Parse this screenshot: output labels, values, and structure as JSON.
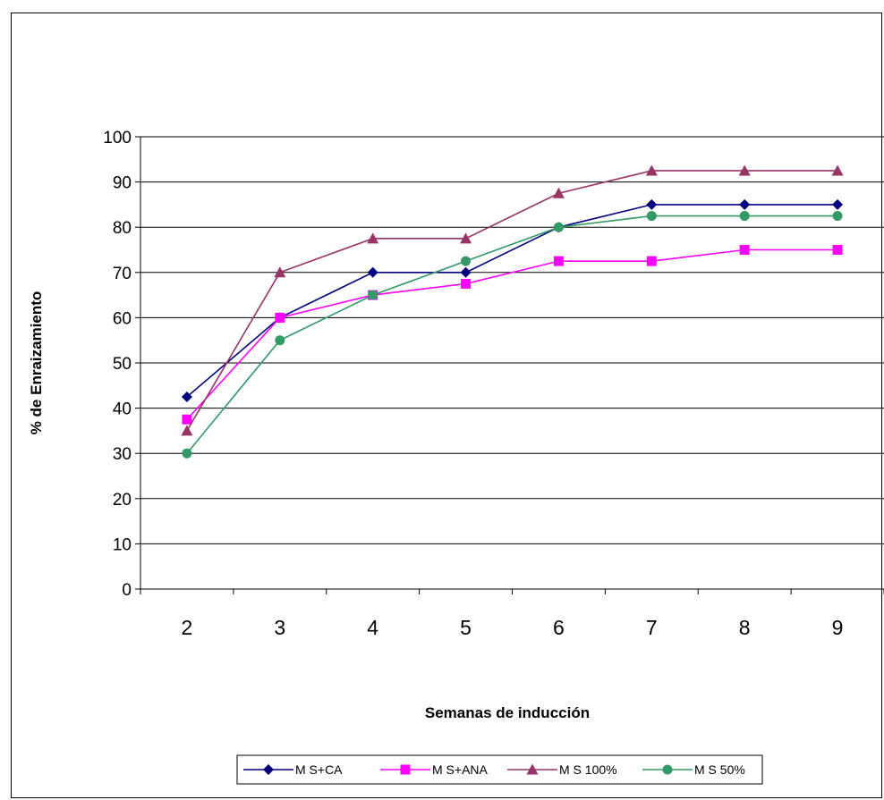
{
  "chart_data": {
    "type": "line",
    "xlabel": "Semanas de inducción",
    "ylabel": "% de Enraizamiento",
    "categories": [
      "2",
      "3",
      "4",
      "5",
      "6",
      "7",
      "8",
      "9"
    ],
    "ylim": [
      0,
      100
    ],
    "yticks": [
      0,
      10,
      20,
      30,
      40,
      50,
      60,
      70,
      80,
      90,
      100
    ],
    "grid": true,
    "legend_position": "bottom",
    "series": [
      {
        "name": "M S+CA",
        "color": "#000080",
        "marker": "diamond",
        "values": [
          42.5,
          60,
          70,
          70,
          80,
          85,
          85,
          85
        ]
      },
      {
        "name": "M S+ANA",
        "color": "#FF00FF",
        "marker": "square",
        "values": [
          37.5,
          60,
          65,
          67.5,
          72.5,
          72.5,
          75,
          75
        ]
      },
      {
        "name": "M S 100%",
        "color": "#993366",
        "marker": "triangle",
        "values": [
          35,
          70,
          77.5,
          77.5,
          87.5,
          92.5,
          92.5,
          92.5
        ]
      },
      {
        "name": "M S 50%",
        "color": "#339966",
        "marker": "circle",
        "values": [
          30,
          55,
          65,
          72.5,
          80,
          82.5,
          82.5,
          82.5
        ]
      }
    ]
  }
}
